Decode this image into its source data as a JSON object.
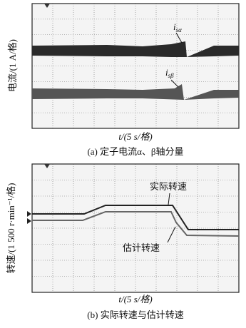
{
  "panel_a": {
    "ylabel": "电流/(1 A/格)",
    "trace1": {
      "main": "i",
      "sub": "sα"
    },
    "trace2": {
      "main": "i",
      "sub": "sβ"
    },
    "xlabel": "t/(5 s/格)",
    "caption": "(a) 定子电流α、β轴分量"
  },
  "panel_b": {
    "ylabel": "转速/(1 500 r·min⁻¹/格)",
    "trace1": "实际转速",
    "trace2": "估计转速",
    "xlabel": "t/(5 s/格)",
    "caption": "(b) 实际转速与估计转速"
  }
}
